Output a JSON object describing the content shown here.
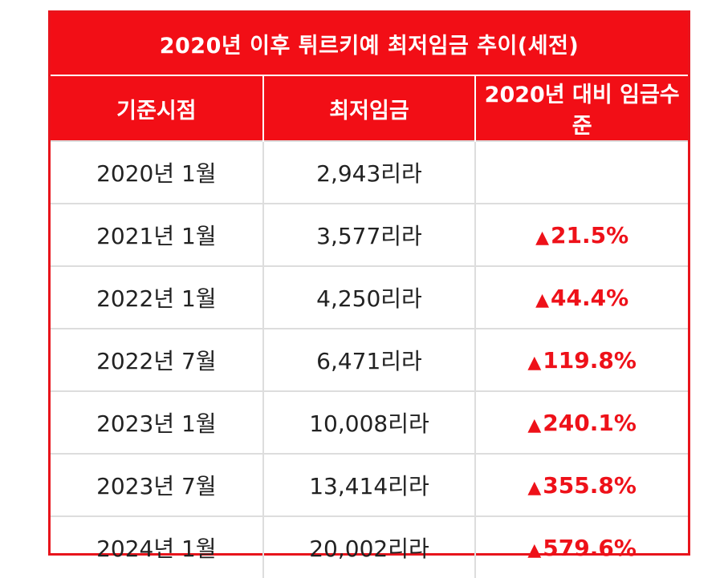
{
  "title": "2020년 이후 튀르키예 최저임금 추이(세전)",
  "headers": [
    "기준시점",
    "최저임금",
    "2020년 대비 임금수준"
  ],
  "rows": [
    {
      "date": "2020년 1월",
      "wage": "2,943리라",
      "change": ""
    },
    {
      "date": "2021년 1월",
      "wage": "3,577리라",
      "change": "21.5%"
    },
    {
      "date": "2022년 1월",
      "wage": "4,250리라",
      "change": "44.4%"
    },
    {
      "date": "2022년 7월",
      "wage": "6,471리라",
      "change": "119.8%"
    },
    {
      "date": "2023년 1월",
      "wage": "10,008리라",
      "change": "240.1%"
    },
    {
      "date": "2023년 7월",
      "wage": "13,414리라",
      "change": "355.8%"
    },
    {
      "date": "2024년 1월",
      "wage": "20,002리라",
      "change": "579.6%"
    }
  ],
  "increase_symbol": "▲",
  "colors": {
    "accent": "#f20e16",
    "change_text": "#ee1119"
  }
}
